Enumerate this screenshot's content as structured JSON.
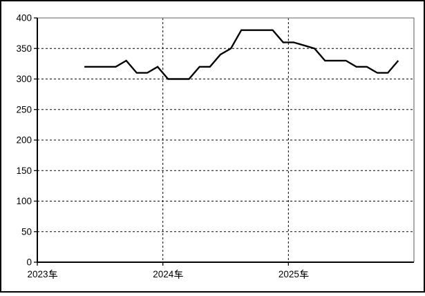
{
  "window": {
    "background_color": "#ffffff",
    "outer_border_color": "#000000"
  },
  "chart_data": {
    "type": "line",
    "title": "",
    "xlabel": "",
    "ylabel": "",
    "ylim": [
      0,
      400
    ],
    "y_step": 50,
    "y_tick_labels": [
      "0",
      "50",
      "100",
      "150",
      "200",
      "250",
      "300",
      "350",
      "400"
    ],
    "x_tick_labels": [
      "2023年",
      "2024年",
      "2025年"
    ],
    "categories": [
      "2023-01",
      "2023-02",
      "2023-03",
      "2023-04",
      "2023-05",
      "2023-06",
      "2023-07",
      "2023-08",
      "2023-09",
      "2023-10",
      "2023-11",
      "2023-12",
      "2024-01",
      "2024-02",
      "2024-03",
      "2024-04",
      "2024-05",
      "2024-06",
      "2024-07",
      "2024-08",
      "2024-09",
      "2024-10",
      "2024-11",
      "2024-12",
      "2025-01",
      "2025-02",
      "2025-03",
      "2025-04",
      "2025-05",
      "2025-06",
      "2025-07",
      "2025-08",
      "2025-09",
      "2025-10",
      "2025-11",
      "2025-12"
    ],
    "series": [
      {
        "name": "value",
        "color": "#000000",
        "values": [
          null,
          null,
          null,
          null,
          320,
          320,
          320,
          320,
          330,
          310,
          310,
          320,
          300,
          300,
          300,
          320,
          320,
          340,
          350,
          380,
          380,
          380,
          380,
          360,
          360,
          355,
          350,
          330,
          330,
          330,
          320,
          320,
          310,
          310,
          330,
          null
        ]
      }
    ],
    "grid": {
      "horizontal": "dashed",
      "vertical": "dashed-at-year-boundaries",
      "color": "#000000"
    },
    "axis_color": "#000000",
    "plot_border_color": "#808080",
    "legend_position": "none"
  }
}
